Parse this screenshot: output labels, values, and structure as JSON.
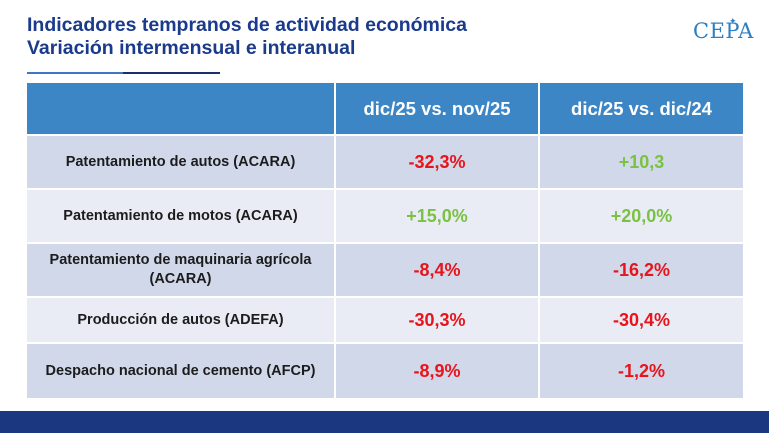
{
  "header": {
    "title_line1": "Indicadores tempranos de actividad económica",
    "title_line2": "Variación intermensual e interanual",
    "logo_text": "CEPA"
  },
  "table": {
    "columns": [
      "",
      "dic/25 vs. nov/25",
      "dic/25 vs. dic/24"
    ],
    "rows": [
      {
        "label": "Patentamiento de autos (ACARA)",
        "mom": "-32,3%",
        "yoy": "+10,3"
      },
      {
        "label": "Patentamiento de motos (ACARA)",
        "mom": "+15,0%",
        "yoy": "+20,0%"
      },
      {
        "label": "Patentamiento de maquinaria agrícola (ACARA)",
        "mom": "-8,4%",
        "yoy": "-16,2%"
      },
      {
        "label": "Producción de autos (ADEFA)",
        "mom": "-30,3%",
        "yoy": "-30,4%"
      },
      {
        "label": "Despacho nacional de cemento (AFCP)",
        "mom": "-8,9%",
        "yoy": "-1,2%"
      }
    ]
  },
  "colors": {
    "title": "#1a3a8c",
    "header_bg": "#3d86c6",
    "row_odd": "#d0d8ea",
    "row_even": "#e9ecf5",
    "negative": "#e8141c",
    "positive": "#7bc142",
    "footer": "#1b3780"
  }
}
